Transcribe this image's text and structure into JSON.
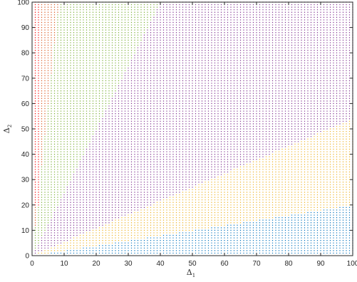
{
  "chart_data": {
    "type": "scatter",
    "title": "",
    "xlabel": "Δ",
    "xlabel_sub": "1",
    "ylabel": "Δ",
    "ylabel_sub": "2",
    "xlim": [
      0,
      100
    ],
    "ylim": [
      0,
      100
    ],
    "x_ticks": [
      0,
      10,
      20,
      30,
      40,
      50,
      60,
      70,
      80,
      90,
      100
    ],
    "y_ticks": [
      0,
      10,
      20,
      30,
      40,
      50,
      60,
      70,
      80,
      90,
      100
    ],
    "x_tick_labels": [
      "0",
      "10",
      "20",
      "30",
      "40",
      "50",
      "60",
      "70",
      "80",
      "90",
      "100"
    ],
    "y_tick_labels": [
      "0",
      "10",
      "20",
      "30",
      "40",
      "50",
      "60",
      "70",
      "80",
      "90",
      "100"
    ],
    "grid": false,
    "grid_step": 1,
    "regions": [
      {
        "color": "#0072BD",
        "rule": "y < 0.2 * x",
        "description": "bottom wedge"
      },
      {
        "color": "#EDB120",
        "rule": "0.2 * x <= y < 0.54 * x",
        "description": "lower-middle wedge"
      },
      {
        "color": "#7E2F8E",
        "rule": "0.54 * x <= y < 2.5 * x",
        "description": "upper-middle wedge"
      },
      {
        "color": "#77AC30",
        "rule": "2.5 * x <= y < 12 * x",
        "description": "upper wedge"
      },
      {
        "color": "#D95319",
        "rule": "y >= 12 * x",
        "description": "near-vertical wedge"
      },
      {
        "color": "#FF0000",
        "rule": "x <= 2 and y >= 20",
        "description": "leftmost strip"
      }
    ],
    "boundary_slopes": [
      0.2,
      0.54,
      2.5,
      12
    ]
  }
}
